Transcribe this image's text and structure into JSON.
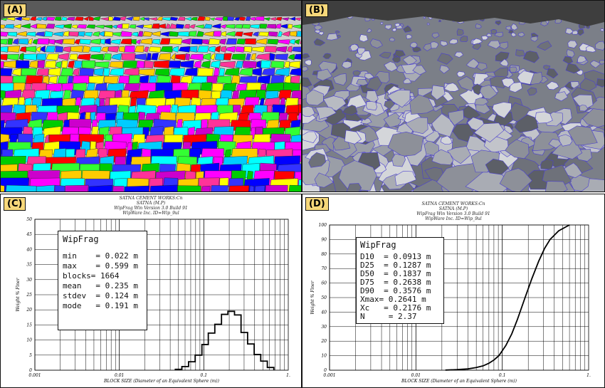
{
  "panels": {
    "a": {
      "label": "(A)"
    },
    "b": {
      "label": "(B)"
    },
    "c": {
      "label": "(C)"
    },
    "d": {
      "label": "(D)"
    }
  },
  "header": {
    "line1": "SATNA CEMENT WORKS:Cn",
    "line2": "SATNA (M.P)",
    "line3": "WipFrag Win Version 3.0 Build 91",
    "line4": "WipWare Inc.  ID=Wip_9ul"
  },
  "stats_c": {
    "title": "WipFrag",
    "rows": [
      "min    = 0.022 m",
      "max    = 0.599 m",
      "blocks= 1664",
      "mean   = 0.235 m",
      "stdev  = 0.124 m",
      "mode   = 0.191 m"
    ]
  },
  "stats_d": {
    "title": "WipFrag",
    "rows": [
      "D10  = 0.0913 m",
      "D25  = 0.1287 m",
      "D50  = 0.1837 m",
      "D75  = 0.2638 m",
      "D90  = 0.3576 m",
      "Xmax= 0.2641 m",
      "Xc   = 0.2176 m",
      "N     = 2.37"
    ]
  },
  "chart_data": [
    {
      "type": "bar",
      "xlabel": "BLOCK SIZE (Diameter of an Equivalent Sphere (m))",
      "ylabel": "Weight % Finer",
      "xscale": "log",
      "xlim": [
        0.001,
        1.0
      ],
      "ylim": [
        0,
        50
      ],
      "xticks": [
        "0.001",
        "0.01",
        "0.1",
        "1."
      ],
      "yticks": [
        "0",
        "5",
        "10",
        "15",
        "20",
        "25",
        "30",
        "35",
        "40",
        "45",
        "50"
      ],
      "bin_edges": [
        0.046,
        0.055,
        0.066,
        0.079,
        0.095,
        0.113,
        0.135,
        0.162,
        0.193,
        0.231,
        0.276,
        0.33,
        0.395,
        0.472,
        0.565,
        0.675
      ],
      "values": [
        0.3,
        1.2,
        2.8,
        5.0,
        8.5,
        12.3,
        15.2,
        18.5,
        19.5,
        18.3,
        12.5,
        8.7,
        5.2,
        3.0,
        0.9
      ],
      "color": "#000000"
    },
    {
      "type": "line",
      "xlabel": "BLOCK SIZE (Diameter of an Equivalent Sphere (m))",
      "ylabel": "Weight % Finer",
      "xscale": "log",
      "xlim": [
        0.001,
        1.0
      ],
      "ylim": [
        0,
        100
      ],
      "xticks": [
        "0.001",
        "0.01",
        "0.1",
        "1."
      ],
      "yticks": [
        "0",
        "10",
        "20",
        "30",
        "40",
        "50",
        "60",
        "70",
        "80",
        "90",
        "100"
      ],
      "series": [
        {
          "x": [
            0.022,
            0.03,
            0.04,
            0.05,
            0.06,
            0.07,
            0.08,
            0.0913,
            0.11,
            0.1287,
            0.15,
            0.1837,
            0.22,
            0.2638,
            0.31,
            0.3576,
            0.45,
            0.599
          ],
          "y": [
            0.1,
            0.4,
            0.9,
            1.8,
            3.0,
            4.8,
            7.0,
            10,
            17,
            25,
            35,
            50,
            63,
            75,
            84,
            90,
            96,
            100
          ]
        }
      ],
      "color": "#000000"
    }
  ]
}
